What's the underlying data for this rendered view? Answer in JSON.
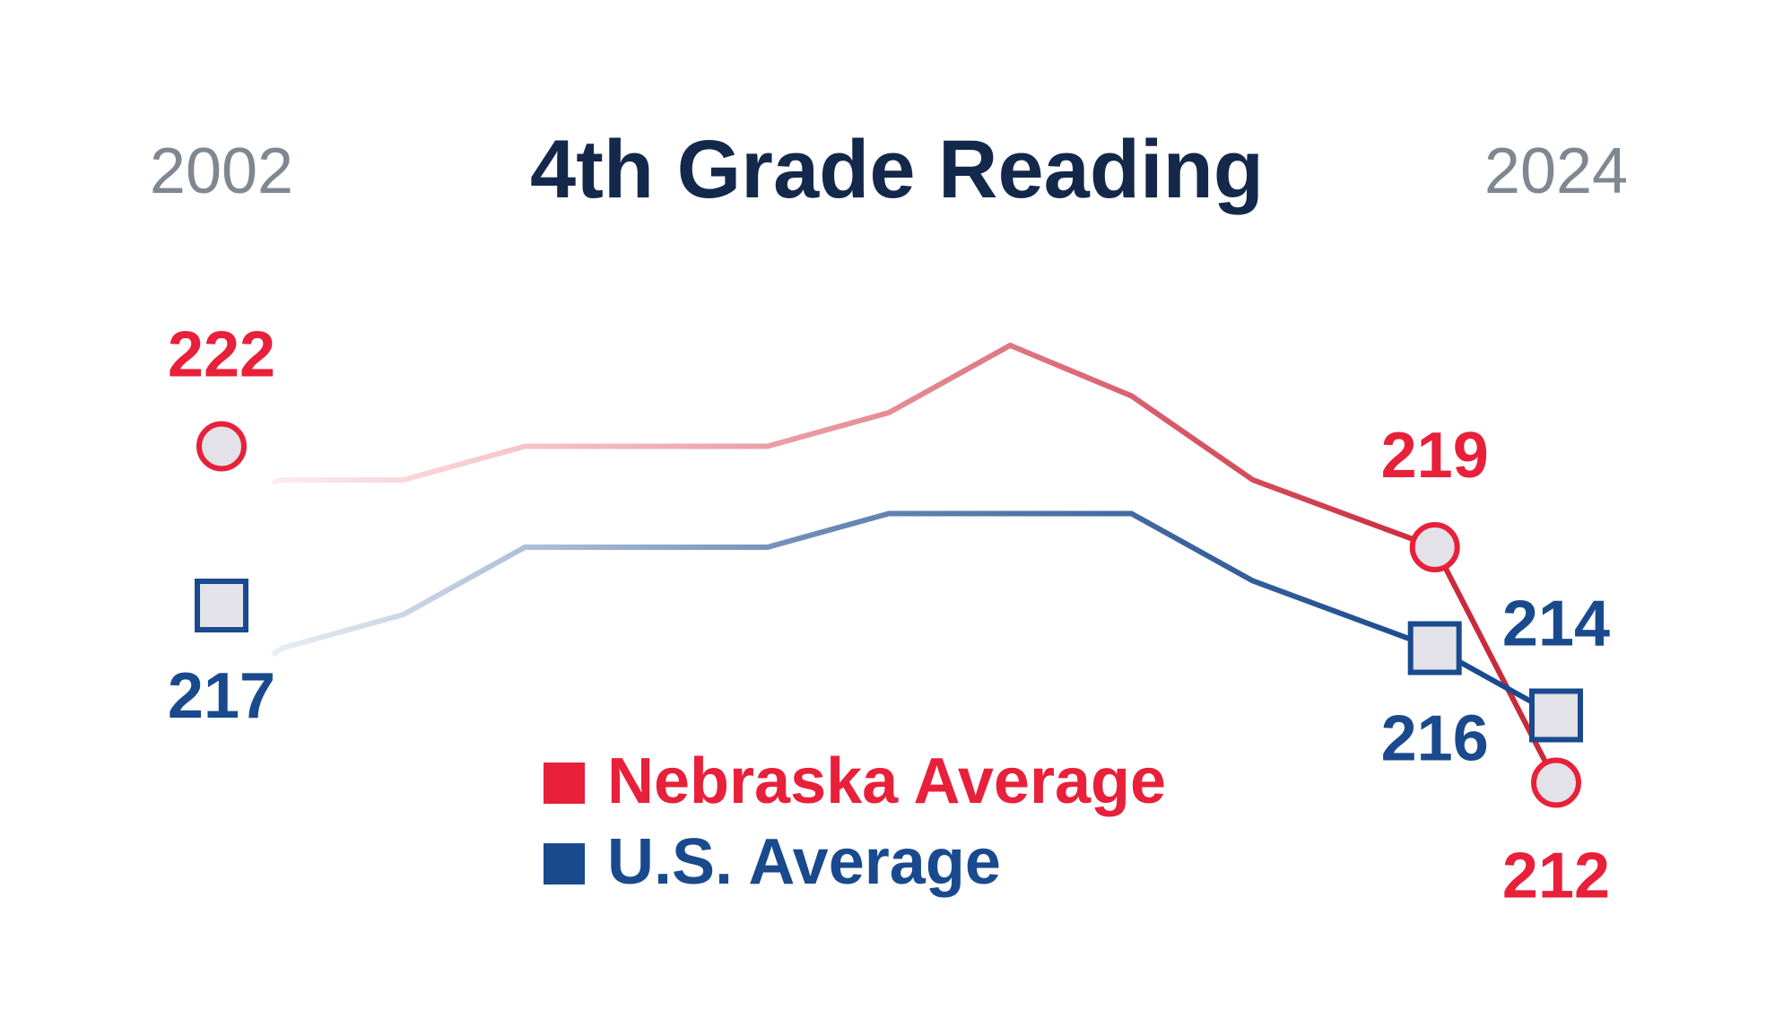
{
  "chart_data": {
    "type": "line",
    "title": "4th Grade Reading",
    "x_start_label": "2002",
    "x_end_label": "2024",
    "x": [
      2002,
      2003,
      2005,
      2007,
      2009,
      2011,
      2013,
      2015,
      2017,
      2019,
      2022,
      2024
    ],
    "series": [
      {
        "name": "Nebraska Average",
        "color": "#e8203a",
        "values": [
          222,
          221,
          221,
          222,
          222,
          222,
          223,
          225,
          223.5,
          221,
          219,
          212
        ]
      },
      {
        "name": "U.S. Average",
        "color": "#1a4a8e",
        "values": [
          217,
          216,
          217,
          219,
          219,
          219,
          220,
          220,
          220,
          218,
          216,
          214
        ]
      }
    ],
    "labeled_points": [
      {
        "series": "Nebraska Average",
        "x": 2002,
        "value": "222",
        "marker": "circle"
      },
      {
        "series": "Nebraska Average",
        "x": 2022,
        "value": "219",
        "marker": "circle"
      },
      {
        "series": "Nebraska Average",
        "x": 2024,
        "value": "212",
        "marker": "circle"
      },
      {
        "series": "U.S. Average",
        "x": 2002,
        "value": "217",
        "marker": "square"
      },
      {
        "series": "U.S. Average",
        "x": 2022,
        "value": "216",
        "marker": "square"
      },
      {
        "series": "U.S. Average",
        "x": 2024,
        "value": "214",
        "marker": "square"
      }
    ],
    "legend": {
      "placement": "bottom-center",
      "items": [
        {
          "label": "Nebraska Average",
          "color": "#e8203a"
        },
        {
          "label": "U.S. Average",
          "color": "#1a4a8e"
        }
      ]
    },
    "colors": {
      "title": "#14284b",
      "year_labels": "#7f8891",
      "marker_fill": "#e2e2e8"
    },
    "grid": false,
    "axes_visible": false
  }
}
